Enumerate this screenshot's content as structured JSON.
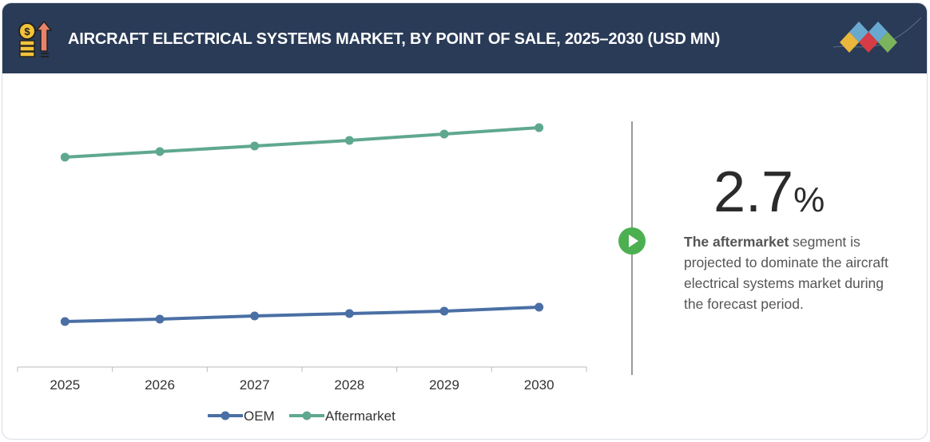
{
  "header": {
    "title": "AIRCRAFT ELECTRICAL SYSTEMS MARKET, BY POINT OF SALE, 2025–2030 (USD MN)",
    "icon": "money-growth-icon",
    "logo": "diamond-logo"
  },
  "callout": {
    "value": "2.7",
    "unit": "%",
    "bold": "The aftermarket",
    "text": " segment is projected to dominate the aircraft electrical systems market during the forecast period.",
    "icon": "play-icon",
    "accent": "#4caf50"
  },
  "chart_data": {
    "type": "line",
    "categories": [
      "2025",
      "2026",
      "2027",
      "2028",
      "2029",
      "2030"
    ],
    "ylim": [
      0,
      340
    ],
    "series": [
      {
        "name": "OEM",
        "color": "#4a6fa5",
        "values": [
          57,
          60,
          64,
          67,
          70,
          75
        ]
      },
      {
        "name": "Aftermarket",
        "color": "#5fa88f",
        "values": [
          263,
          270,
          277,
          284,
          292,
          300
        ]
      }
    ],
    "legend": "bottom",
    "grid": false
  }
}
